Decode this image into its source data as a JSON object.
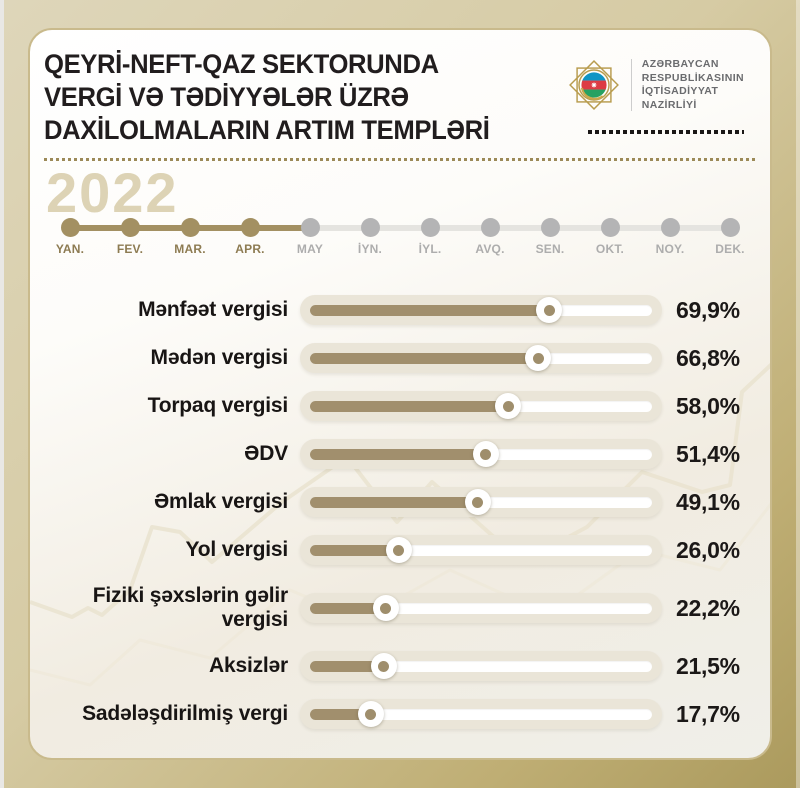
{
  "title": {
    "lines": [
      "QEYRİ-NEFT-QAZ SEKTORUNDA",
      "VERGİ VƏ TƏDİYYƏLƏR ÜZRƏ",
      "DAXİLOLMALARIN ARTIM TEMPLƏRİ"
    ]
  },
  "logo": {
    "emblem": "ministry-of-economy-emblem",
    "ministry_lines": [
      "AZƏRBAYCAN",
      "RESPUBLİKASININ",
      "İQTİSADİYYAT",
      "NAZİRLİYİ"
    ]
  },
  "year": "2022",
  "timeline": {
    "progress_percent": 36.4,
    "months": [
      {
        "label": "YAN.",
        "active": true
      },
      {
        "label": "FEV.",
        "active": true
      },
      {
        "label": "MAR.",
        "active": true
      },
      {
        "label": "APR.",
        "active": true
      },
      {
        "label": "MAY",
        "active": false
      },
      {
        "label": "İYN.",
        "active": false
      },
      {
        "label": "İYL.",
        "active": false
      },
      {
        "label": "AVQ.",
        "active": false
      },
      {
        "label": "SEN.",
        "active": false
      },
      {
        "label": "OKT.",
        "active": false
      },
      {
        "label": "NOY.",
        "active": false
      },
      {
        "label": "DEK.",
        "active": false
      }
    ]
  },
  "chart_data": {
    "type": "bar",
    "title": "QEYRİ-NEFT-QAZ SEKTORUNDA VERGİ VƏ TƏDİYYƏLƏR ÜZRƏ DAXİLOLMALARIN ARTIM TEMPLƏRİ",
    "period": "2022, YAN.–APR.",
    "unit": "%",
    "xlim": [
      0,
      100
    ],
    "categories": [
      "Mənfəət vergisi",
      "Mədən vergisi",
      "Torpaq vergisi",
      "ƏDV",
      "Əmlak vergisi",
      "Yol vergisi",
      "Fiziki şəxslərin gəlir vergisi",
      "Aksizlər",
      "Sadələşdirilmiş vergi"
    ],
    "values": [
      69.9,
      66.8,
      58.0,
      51.4,
      49.1,
      26.0,
      22.2,
      21.5,
      17.7
    ],
    "value_labels": [
      "69,9%",
      "66,8%",
      "58,0%",
      "51,4%",
      "49,1%",
      "26,0%",
      "22,2%",
      "21,5%",
      "17,7%"
    ]
  },
  "colors": {
    "frame_gold": "#ad9b5f",
    "active_brown": "#a39062",
    "bar_fill": "#a18f6d",
    "year_beige": "#ddd3b5",
    "flag_blue": "#0f95c5",
    "flag_red": "#dd3b44",
    "flag_green": "#26a162"
  }
}
